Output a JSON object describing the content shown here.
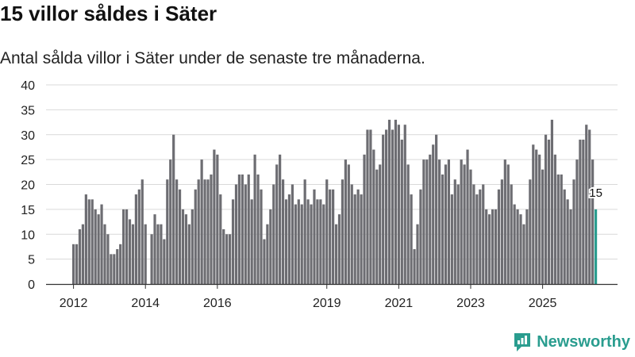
{
  "page": {
    "title": "15 villor såldes i Säter",
    "subtitle": "Antal sålda villor i Säter under de senaste tre månaderna."
  },
  "brand": {
    "name": "Newsworthy",
    "color": "#2a9d8f",
    "icon": "newsworthy-logo-icon"
  },
  "colors": {
    "bar": "#6d6d72",
    "highlight": "#2a9d8f",
    "grid": "#d9d9d9",
    "axis": "#333333"
  },
  "chart_data": {
    "type": "bar",
    "title": "Antal sålda villor i Säter under de senaste tre månaderna.",
    "xlabel": "",
    "ylabel": "",
    "ylim": [
      0,
      40
    ],
    "yticks": [
      0,
      5,
      10,
      15,
      20,
      25,
      30,
      35,
      40
    ],
    "xticks": [
      {
        "label": "2012",
        "index": 0
      },
      {
        "label": "2014",
        "index": 23
      },
      {
        "label": "2016",
        "index": 46
      },
      {
        "label": "2019",
        "index": 81
      },
      {
        "label": "2021",
        "index": 104
      },
      {
        "label": "2023",
        "index": 127
      },
      {
        "label": "2025",
        "index": 150
      }
    ],
    "values": [
      8,
      8,
      11,
      12,
      18,
      17,
      17,
      15,
      14,
      16,
      12,
      10,
      6,
      6,
      7,
      8,
      15,
      15,
      13,
      12,
      18,
      19,
      21,
      12,
      0,
      10,
      14,
      12,
      12,
      9,
      21,
      25,
      30,
      21,
      19,
      15,
      14,
      12,
      15,
      19,
      21,
      25,
      21,
      21,
      22,
      27,
      26,
      18,
      11,
      10,
      10,
      17,
      20,
      22,
      22,
      20,
      22,
      17,
      26,
      22,
      19,
      9,
      12,
      15,
      20,
      24,
      26,
      21,
      17,
      18,
      20,
      16,
      17,
      16,
      21,
      17,
      16,
      19,
      17,
      17,
      16,
      21,
      19,
      19,
      12,
      14,
      21,
      25,
      24,
      20,
      18,
      19,
      18,
      26,
      31,
      31,
      27,
      23,
      24,
      30,
      31,
      33,
      31,
      33,
      32,
      29,
      32,
      24,
      18,
      7,
      12,
      19,
      25,
      25,
      26,
      28,
      30,
      25,
      22,
      24,
      25,
      18,
      21,
      20,
      25,
      24,
      27,
      23,
      20,
      18,
      19,
      20,
      15,
      14,
      15,
      15,
      19,
      21,
      25,
      24,
      20,
      16,
      15,
      14,
      12,
      15,
      21,
      28,
      27,
      26,
      23,
      30,
      29,
      33,
      26,
      22,
      22,
      19,
      17,
      15,
      21,
      25,
      29,
      29,
      32,
      31,
      25,
      15
    ],
    "highlight_index": 167,
    "annotation": {
      "index": 167,
      "text": "15"
    }
  }
}
